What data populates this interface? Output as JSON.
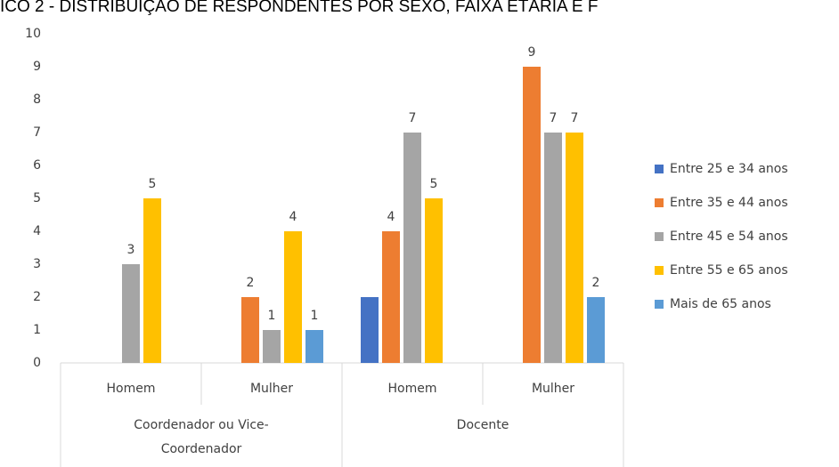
{
  "chart_data": {
    "type": "bar",
    "title": "ICO 2 - DISTRIBUIÇÃO DE RESPONDENTES POR SEXO, FAIXA ETÁRIA E F",
    "categories": [
      "Homem",
      "Mulher",
      "Homem",
      "Mulher"
    ],
    "groups": [
      [
        "Coordenador ou Vice-",
        "Coordenador"
      ],
      [
        "Docente"
      ]
    ],
    "series": [
      {
        "name": "Entre 25 e 34 anos",
        "color": "#4472c4",
        "values": [
          null,
          null,
          2,
          null
        ],
        "data_labels": false
      },
      {
        "name": "Entre 35 e 44 anos",
        "color": "#ed7d31",
        "values": [
          null,
          2,
          4,
          9
        ],
        "data_labels": true
      },
      {
        "name": "Entre 45 e 54 anos",
        "color": "#a5a5a5",
        "values": [
          3,
          1,
          7,
          7
        ],
        "data_labels": true
      },
      {
        "name": "Entre 55 e 65 anos",
        "color": "#ffc000",
        "values": [
          5,
          4,
          5,
          7
        ],
        "data_labels": true
      },
      {
        "name": "Mais de 65 anos",
        "color": "#5b9bd5",
        "values": [
          null,
          1,
          null,
          2
        ],
        "data_labels": true
      }
    ],
    "ylim": [
      0,
      10
    ],
    "yticks": [
      0,
      1,
      2,
      3,
      4,
      5,
      6,
      7,
      8,
      9,
      10
    ],
    "grid": false,
    "legend": "right"
  }
}
